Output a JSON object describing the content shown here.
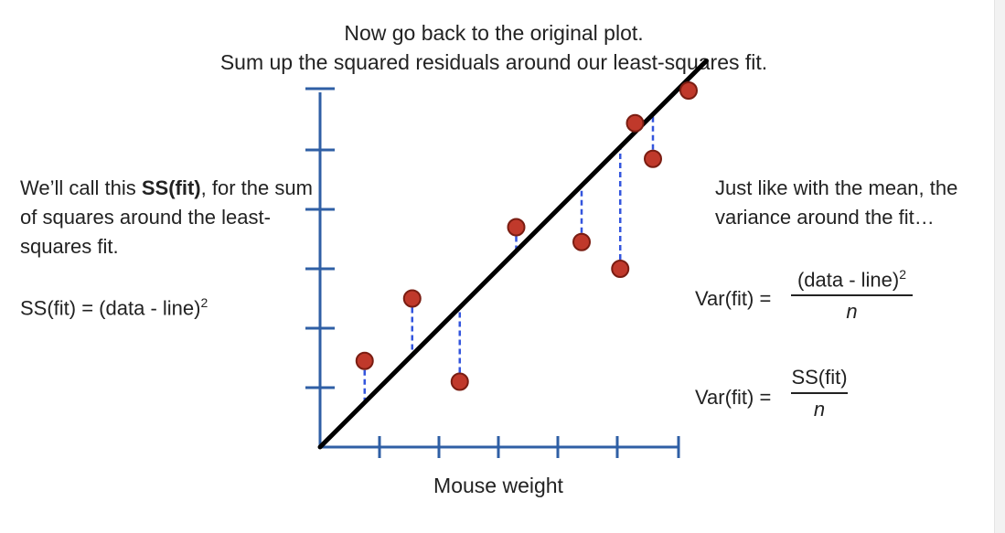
{
  "title": {
    "line1": "Now go back to the original plot.",
    "line2": "Sum up the squared residuals around our least-squares fit."
  },
  "left_text": {
    "prefix": "We’ll call this ",
    "bold": "SS(fit)",
    "suffix": ", for the sum of squares around the least-squares fit."
  },
  "ss_formula": {
    "lhs": "SS(fit) = (data - line)",
    "sup": "2"
  },
  "right_text": "Just like with the mean, the variance around the fit…",
  "var_formula_1": {
    "label": "Var(fit) =",
    "numerator": "(data - line)",
    "numerator_sup": "2",
    "denominator": "n"
  },
  "var_formula_2": {
    "label": "Var(fit) =",
    "numerator": "SS(fit)",
    "denominator": "n"
  },
  "xlabel": "Mouse weight",
  "colors": {
    "axis": "#2f5fa5",
    "point_fill": "#c0392b",
    "point_stroke": "#7a1d12",
    "fit_line": "#000000",
    "residual": "#3355dd"
  },
  "chart_data": {
    "type": "scatter",
    "xlabel": "Mouse weight",
    "ylabel": "",
    "xlim": [
      0,
      6
    ],
    "ylim": [
      0,
      6
    ],
    "fit_line": {
      "intercept": 0,
      "slope": 1.0
    },
    "points": [
      {
        "x": 0.75,
        "y": 1.45
      },
      {
        "x": 1.55,
        "y": 2.5
      },
      {
        "x": 2.35,
        "y": 1.1
      },
      {
        "x": 3.3,
        "y": 3.7
      },
      {
        "x": 4.4,
        "y": 3.45
      },
      {
        "x": 5.05,
        "y": 3.0
      },
      {
        "x": 5.3,
        "y": 5.45
      },
      {
        "x": 5.6,
        "y": 4.85
      },
      {
        "x": 6.2,
        "y": 6.0
      }
    ]
  }
}
